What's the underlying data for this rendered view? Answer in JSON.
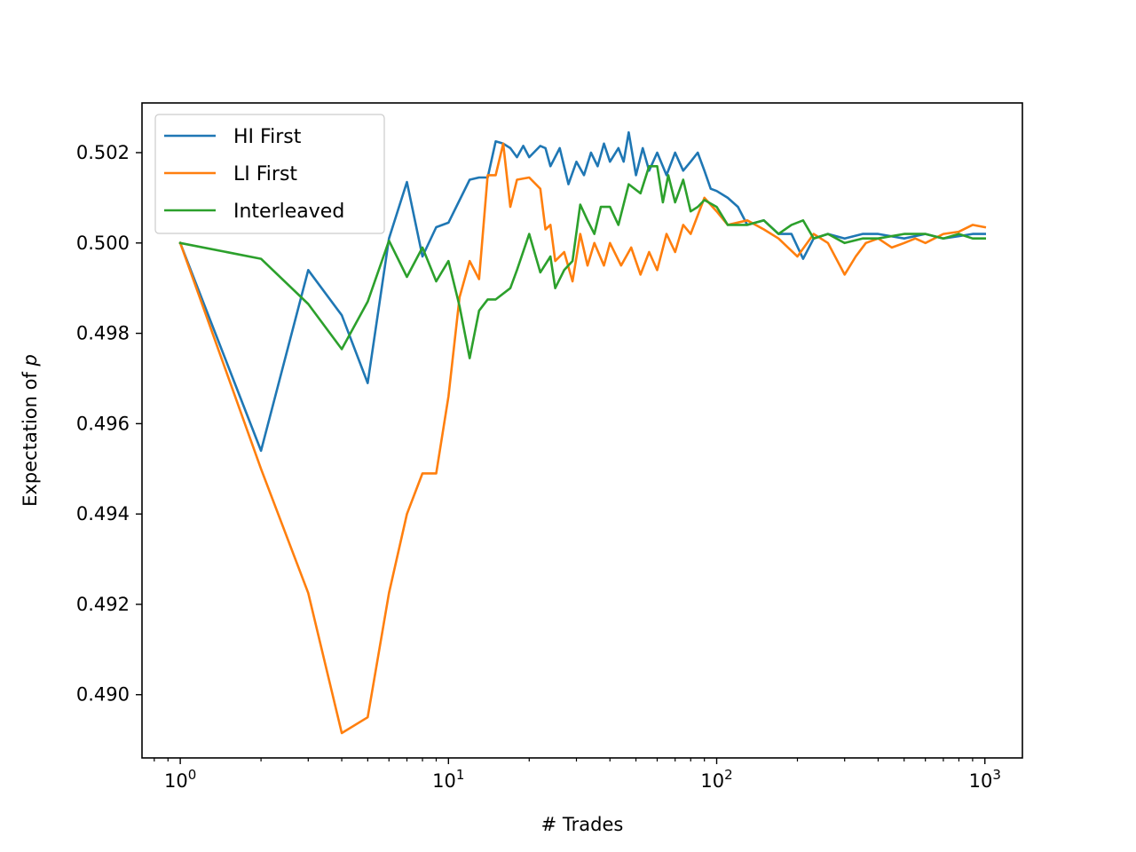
{
  "chart_data": {
    "type": "line",
    "xscale": "log",
    "xlabel": "# Trades",
    "ylabel_prefix": "Expectation of ",
    "ylabel_var": "p",
    "xlim": [
      0.72,
      1380
    ],
    "ylim": [
      0.4886,
      0.5031
    ],
    "x_major_ticks": [
      {
        "value": 1,
        "base": "10",
        "exp": "0"
      },
      {
        "value": 10,
        "base": "10",
        "exp": "1"
      },
      {
        "value": 100,
        "base": "10",
        "exp": "2"
      },
      {
        "value": 1000,
        "base": "10",
        "exp": "3"
      }
    ],
    "x_minor_ticks": [
      0.8,
      0.9,
      2,
      3,
      4,
      5,
      6,
      7,
      8,
      9,
      20,
      30,
      40,
      50,
      60,
      70,
      80,
      90,
      200,
      300,
      400,
      500,
      600,
      700,
      800,
      900
    ],
    "y_ticks": [
      "0.490",
      "0.492",
      "0.494",
      "0.496",
      "0.498",
      "0.500",
      "0.502"
    ],
    "legend_position": "upper-left",
    "grid": false,
    "series": [
      {
        "name": "HI First",
        "color": "#1f77b4",
        "points": [
          [
            1,
            0.5
          ],
          [
            2,
            0.4954
          ],
          [
            3,
            0.4994
          ],
          [
            4,
            0.4984
          ],
          [
            5,
            0.4969
          ],
          [
            6,
            0.5001
          ],
          [
            7,
            0.50135
          ],
          [
            8,
            0.4997
          ],
          [
            9,
            0.50035
          ],
          [
            10,
            0.50045
          ],
          [
            12,
            0.5014
          ],
          [
            13,
            0.50145
          ],
          [
            14,
            0.50145
          ],
          [
            15,
            0.50225
          ],
          [
            16,
            0.5022
          ],
          [
            17,
            0.5021
          ],
          [
            18,
            0.5019
          ],
          [
            19,
            0.50215
          ],
          [
            20,
            0.5019
          ],
          [
            22,
            0.50215
          ],
          [
            23,
            0.5021
          ],
          [
            24,
            0.5017
          ],
          [
            26,
            0.5021
          ],
          [
            28,
            0.5013
          ],
          [
            30,
            0.5018
          ],
          [
            32,
            0.5015
          ],
          [
            34,
            0.502
          ],
          [
            36,
            0.5017
          ],
          [
            38,
            0.5022
          ],
          [
            40,
            0.5018
          ],
          [
            43,
            0.5021
          ],
          [
            45,
            0.5018
          ],
          [
            47,
            0.50245
          ],
          [
            50,
            0.5015
          ],
          [
            53,
            0.5021
          ],
          [
            56,
            0.5016
          ],
          [
            60,
            0.502
          ],
          [
            65,
            0.5015
          ],
          [
            70,
            0.502
          ],
          [
            75,
            0.5016
          ],
          [
            80,
            0.5018
          ],
          [
            85,
            0.502
          ],
          [
            90,
            0.5016
          ],
          [
            95,
            0.5012
          ],
          [
            100,
            0.50115
          ],
          [
            110,
            0.501
          ],
          [
            120,
            0.5008
          ],
          [
            130,
            0.5004
          ],
          [
            150,
            0.5005
          ],
          [
            170,
            0.5002
          ],
          [
            190,
            0.5002
          ],
          [
            210,
            0.49965
          ],
          [
            230,
            0.5001
          ],
          [
            260,
            0.5002
          ],
          [
            300,
            0.5001
          ],
          [
            350,
            0.5002
          ],
          [
            400,
            0.5002
          ],
          [
            500,
            0.5001
          ],
          [
            600,
            0.5002
          ],
          [
            700,
            0.5001
          ],
          [
            800,
            0.50015
          ],
          [
            900,
            0.5002
          ],
          [
            1000,
            0.5002
          ]
        ]
      },
      {
        "name": "LI First",
        "color": "#ff7f0e",
        "points": [
          [
            1,
            0.5
          ],
          [
            2,
            0.495
          ],
          [
            3,
            0.49225
          ],
          [
            4,
            0.48915
          ],
          [
            5,
            0.4895
          ],
          [
            6,
            0.49225
          ],
          [
            7,
            0.494
          ],
          [
            8,
            0.4949
          ],
          [
            9,
            0.4949
          ],
          [
            10,
            0.4966
          ],
          [
            11,
            0.4988
          ],
          [
            12,
            0.4996
          ],
          [
            13,
            0.4992
          ],
          [
            14,
            0.5015
          ],
          [
            15,
            0.5015
          ],
          [
            16,
            0.5022
          ],
          [
            17,
            0.5008
          ],
          [
            18,
            0.5014
          ],
          [
            20,
            0.50145
          ],
          [
            22,
            0.5012
          ],
          [
            23,
            0.5003
          ],
          [
            24,
            0.5004
          ],
          [
            25,
            0.4996
          ],
          [
            27,
            0.4998
          ],
          [
            29,
            0.49915
          ],
          [
            31,
            0.5002
          ],
          [
            33,
            0.4995
          ],
          [
            35,
            0.5
          ],
          [
            38,
            0.4995
          ],
          [
            40,
            0.5
          ],
          [
            44,
            0.4995
          ],
          [
            48,
            0.4999
          ],
          [
            52,
            0.4993
          ],
          [
            56,
            0.4998
          ],
          [
            60,
            0.4994
          ],
          [
            65,
            0.5002
          ],
          [
            70,
            0.4998
          ],
          [
            75,
            0.5004
          ],
          [
            80,
            0.5002
          ],
          [
            90,
            0.501
          ],
          [
            100,
            0.5007
          ],
          [
            110,
            0.5004
          ],
          [
            130,
            0.5005
          ],
          [
            150,
            0.5003
          ],
          [
            170,
            0.5001
          ],
          [
            200,
            0.4997
          ],
          [
            230,
            0.5002
          ],
          [
            260,
            0.5
          ],
          [
            300,
            0.4993
          ],
          [
            330,
            0.4997
          ],
          [
            360,
            0.5
          ],
          [
            400,
            0.5001
          ],
          [
            450,
            0.4999
          ],
          [
            500,
            0.5
          ],
          [
            550,
            0.5001
          ],
          [
            600,
            0.5
          ],
          [
            700,
            0.5002
          ],
          [
            800,
            0.50025
          ],
          [
            900,
            0.5004
          ],
          [
            1000,
            0.50035
          ]
        ]
      },
      {
        "name": "Interleaved",
        "color": "#2ca02c",
        "points": [
          [
            1,
            0.5
          ],
          [
            2,
            0.49965
          ],
          [
            3,
            0.49865
          ],
          [
            4,
            0.49765
          ],
          [
            5,
            0.4987
          ],
          [
            6,
            0.50005
          ],
          [
            7,
            0.49925
          ],
          [
            8,
            0.4999
          ],
          [
            9,
            0.49915
          ],
          [
            10,
            0.4996
          ],
          [
            11,
            0.4986
          ],
          [
            12,
            0.49745
          ],
          [
            13,
            0.4985
          ],
          [
            14,
            0.49875
          ],
          [
            15,
            0.49875
          ],
          [
            17,
            0.499
          ],
          [
            18,
            0.4994
          ],
          [
            20,
            0.5002
          ],
          [
            22,
            0.49935
          ],
          [
            24,
            0.4997
          ],
          [
            25,
            0.499
          ],
          [
            27,
            0.4994
          ],
          [
            29,
            0.4996
          ],
          [
            31,
            0.50085
          ],
          [
            33,
            0.5005
          ],
          [
            35,
            0.5002
          ],
          [
            37,
            0.5008
          ],
          [
            40,
            0.5008
          ],
          [
            43,
            0.5004
          ],
          [
            47,
            0.5013
          ],
          [
            52,
            0.5011
          ],
          [
            56,
            0.5017
          ],
          [
            60,
            0.5017
          ],
          [
            63,
            0.5009
          ],
          [
            66,
            0.5015
          ],
          [
            70,
            0.5009
          ],
          [
            75,
            0.5014
          ],
          [
            80,
            0.5007
          ],
          [
            85,
            0.5008
          ],
          [
            90,
            0.50095
          ],
          [
            100,
            0.5008
          ],
          [
            110,
            0.5004
          ],
          [
            130,
            0.5004
          ],
          [
            150,
            0.5005
          ],
          [
            170,
            0.5002
          ],
          [
            190,
            0.5004
          ],
          [
            210,
            0.5005
          ],
          [
            230,
            0.5001
          ],
          [
            260,
            0.5002
          ],
          [
            300,
            0.5
          ],
          [
            350,
            0.5001
          ],
          [
            400,
            0.5001
          ],
          [
            500,
            0.5002
          ],
          [
            600,
            0.5002
          ],
          [
            700,
            0.5001
          ],
          [
            800,
            0.5002
          ],
          [
            900,
            0.5001
          ],
          [
            1000,
            0.5001
          ]
        ]
      }
    ]
  }
}
